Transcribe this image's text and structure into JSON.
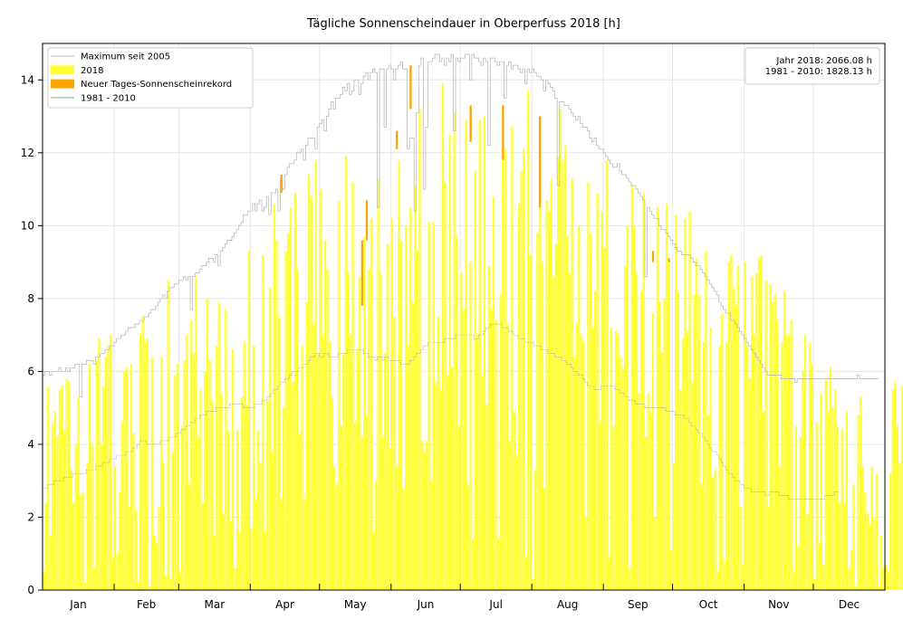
{
  "chart_data": {
    "type": "bar",
    "title": "Tägliche Sonnenscheindauer in Oberperfuss 2018 [h]",
    "xlabel": "",
    "ylabel": "",
    "ylim": [
      0,
      15
    ],
    "xlim_days": [
      0,
      365
    ],
    "grid": true,
    "legend_position": "top-left",
    "yticks": [
      0,
      2,
      4,
      6,
      8,
      10,
      12,
      14
    ],
    "month_labels": [
      "Jan",
      "Feb",
      "Mar",
      "Apr",
      "May",
      "Jun",
      "Jul",
      "Aug",
      "Sep",
      "Oct",
      "Nov",
      "Dec"
    ],
    "month_lengths": [
      31,
      28,
      31,
      30,
      31,
      30,
      31,
      31,
      30,
      31,
      30,
      31
    ],
    "legend": [
      {
        "label": "Maximum seit 2005",
        "kind": "line",
        "color": "#bbbbbb"
      },
      {
        "label": "2018",
        "kind": "patch",
        "color": "#ffff33"
      },
      {
        "label": "Neuer Tages-Sonnenscheinrekord",
        "kind": "patch",
        "color": "#ffa500"
      },
      {
        "label": "1981 - 2010",
        "kind": "line",
        "color": "#999999"
      }
    ],
    "annotation": {
      "line1": "Jahr 2018: 2066.08 h",
      "line2": "1981 - 2010: 1828.13 h"
    },
    "colors": {
      "bars_2018": "#ffff33",
      "record": "#ffa500",
      "maximum_line": "#bbbbbb",
      "normal_line": "#999999",
      "grid": "#e6e6e6"
    },
    "series": [
      {
        "name": "Maximum seit 2005",
        "type": "step",
        "values": [
          5.9,
          6.0,
          6.0,
          5.9,
          6.0,
          6.0,
          6.0,
          6.1,
          6.0,
          6.0,
          6.1,
          6.0,
          6.1,
          6.1,
          6.2,
          6.2,
          5.3,
          6.2,
          6.2,
          6.3,
          6.3,
          6.3,
          6.2,
          6.4,
          6.4,
          6.5,
          6.5,
          6.6,
          6.6,
          6.7,
          6.7,
          6.8,
          6.9,
          6.9,
          7.0,
          7.0,
          7.1,
          7.2,
          7.2,
          7.2,
          7.3,
          7.3,
          7.4,
          7.4,
          7.5,
          7.5,
          7.6,
          7.7,
          7.7,
          7.8,
          7.9,
          8.0,
          8.1,
          8.0,
          8.2,
          8.3,
          8.3,
          8.4,
          8.4,
          8.5,
          8.5,
          8.6,
          8.5,
          8.6,
          7.7,
          8.6,
          8.7,
          8.7,
          8.8,
          8.9,
          8.9,
          9.0,
          9.1,
          9.1,
          9.0,
          9.2,
          8.9,
          9.3,
          9.4,
          9.5,
          9.6,
          9.6,
          9.7,
          9.8,
          9.9,
          10.0,
          10.1,
          10.3,
          10.3,
          10.4,
          10.4,
          10.6,
          10.4,
          10.6,
          10.7,
          10.4,
          10.5,
          10.8,
          10.3,
          10.9,
          10.9,
          11.0,
          10.4,
          11.3,
          11.0,
          11.4,
          11.6,
          11.7,
          11.7,
          11.8,
          12.0,
          12.0,
          12.1,
          11.8,
          12.2,
          12.4,
          12.4,
          12.4,
          12.1,
          12.7,
          12.8,
          12.9,
          12.6,
          13.0,
          13.2,
          13.4,
          13.2,
          13.5,
          13.5,
          13.6,
          13.8,
          13.7,
          13.9,
          13.6,
          13.7,
          14.0,
          14.0,
          13.6,
          13.9,
          14.1,
          14.2,
          14.0,
          14.2,
          14.3,
          14.2,
          10.5,
          14.3,
          14.3,
          12.7,
          14.3,
          14.4,
          14.3,
          14.0,
          14.3,
          14.4,
          14.5,
          14.3,
          14.3,
          12.1,
          12.4,
          12.4,
          10.4,
          13.1,
          14.4,
          14.6,
          11.0,
          12.7,
          14.5,
          14.5,
          14.6,
          14.7,
          14.7,
          14.5,
          14.6,
          14.4,
          14.6,
          14.5,
          14.7,
          12.6,
          14.6,
          14.5,
          14.6,
          14.6,
          14.7,
          14.7,
          14.0,
          14.7,
          14.6,
          14.6,
          14.5,
          14.4,
          14.6,
          14.5,
          12.2,
          14.6,
          14.6,
          14.5,
          14.4,
          14.5,
          14.5,
          13.5,
          14.4,
          14.5,
          14.3,
          14.4,
          14.4,
          14.3,
          14.2,
          14.3,
          13.9,
          14.3,
          14.2,
          14.3,
          14.2,
          14.1,
          14.1,
          14.0,
          13.7,
          14.0,
          13.9,
          13.8,
          13.7,
          13.5,
          11.1,
          13.4,
          13.4,
          13.3,
          13.3,
          13.2,
          13.1,
          13.0,
          12.9,
          13.0,
          12.8,
          12.7,
          12.7,
          12.6,
          12.4,
          12.3,
          12.4,
          12.2,
          12.1,
          12.1,
          12.0,
          11.9,
          11.8,
          11.7,
          11.6,
          11.6,
          11.7,
          11.5,
          11.4,
          11.4,
          11.3,
          11.2,
          11.1,
          11.1,
          11.0,
          10.9,
          10.8,
          10.7,
          8.6,
          10.5,
          10.4,
          10.3,
          10.2,
          10.2,
          10.0,
          9.9,
          9.9,
          9.8,
          9.7,
          9.6,
          9.5,
          9.4,
          9.3,
          9.3,
          9.2,
          9.2,
          9.2,
          9.2,
          9.1,
          9.0,
          8.9,
          8.9,
          8.8,
          8.7,
          8.6,
          8.5,
          8.4,
          8.3,
          8.2,
          8.1,
          7.9,
          7.8,
          7.7,
          7.6,
          7.6,
          7.4,
          7.4,
          7.3,
          7.2,
          7.1,
          7.0,
          6.9,
          6.8,
          6.7,
          6.6,
          6.5,
          6.4,
          6.3,
          6.2,
          6.1,
          6.0,
          5.9,
          5.9,
          5.9,
          5.9,
          5.9,
          5.9,
          5.8,
          5.8,
          5.8,
          5.8,
          5.8,
          5.8,
          5.7,
          5.8,
          5.8,
          5.8,
          5.8,
          5.8,
          5.8,
          5.8,
          5.8,
          5.8,
          5.8,
          5.8,
          5.8,
          5.8,
          5.8,
          5.8,
          5.8,
          5.8,
          5.8,
          5.8,
          5.8,
          5.8,
          5.8,
          5.8,
          5.8,
          5.8,
          5.8,
          5.9,
          5.8,
          5.8,
          5.8,
          5.8,
          5.8,
          5.8,
          5.8,
          5.8
        ]
      },
      {
        "name": "2018",
        "type": "bar",
        "values": [
          0.5,
          2.4,
          5.6,
          1.5,
          4.6,
          4.9,
          4.2,
          5.5,
          5.6,
          4.4,
          5.8,
          5.7,
          3.3,
          2.4,
          4.0,
          5.3,
          2.6,
          2.7,
          0.2,
          3.5,
          6.2,
          4.0,
          0.6,
          6.3,
          6.9,
          4.0,
          5.6,
          6.4,
          6.7,
          7.0,
          0.9,
          3.4,
          1.0,
          2.7,
          4.6,
          6.0,
          6.1,
          2.3,
          6.2,
          4.3,
          2.2,
          0.2,
          7.0,
          7.5,
          6.8,
          6.9,
          0.1,
          6.4,
          1.5,
          1.3,
          2.3,
          6.4,
          3.5,
          0.4,
          8.5,
          0.3,
          3.8,
          5.9,
          6.2,
          0.5,
          4.5,
          6.3,
          7.0,
          2.9,
          7.4,
          6.5,
          8.6,
          4.2,
          5.5,
          2.4,
          6.0,
          8.0,
          6.3,
          5.2,
          1.5,
          6.7,
          7.9,
          5.4,
          2.1,
          7.7,
          4.4,
          1.9,
          6.6,
          0.6,
          4.4,
          1.6,
          5.3,
          6.8,
          5.1,
          9.3,
          1.7,
          6.7,
          2.5,
          4.4,
          3.5,
          9.2,
          1.6,
          5.2,
          8.3,
          3.8,
          10.6,
          9.6,
          7.5,
          2.5,
          5.0,
          9.3,
          9.8,
          10.5,
          5.7,
          10.9,
          8.8,
          4.3,
          6.7,
          2.5,
          7.9,
          11.4,
          10.8,
          7.3,
          11.8,
          6.5,
          11.0,
          7.0,
          9.6,
          8.8,
          6.8,
          5.3,
          3.4,
          2.9,
          10.7,
          4.5,
          6.5,
          11.9,
          8.7,
          7.0,
          11.2,
          4.6,
          6.6,
          8.6,
          4.2,
          9.7,
          4.8,
          8.8,
          10.2,
          1.6,
          3.0,
          11.3,
          8.7,
          4.2,
          6.5,
          9.5,
          3.9,
          10.2,
          7.5,
          3.4,
          11.8,
          9.6,
          2.8,
          10.0,
          6.7,
          10.5,
          7.9,
          11.1,
          9.3,
          13.2,
          4.1,
          3.8,
          4.1,
          10.1,
          3.0,
          10.1,
          5.7,
          7.5,
          5.5,
          13.9,
          11.2,
          5.9,
          12.5,
          6.1,
          13.1,
          9.7,
          4.5,
          8.7,
          7.7,
          12.9,
          2.9,
          9.0,
          1.4,
          11.5,
          7.0,
          12.9,
          5.9,
          13.0,
          5.1,
          8.9,
          7.7,
          10.8,
          7.4,
          1.4,
          8.1,
          11.8,
          12.1,
          7.3,
          4.1,
          12.7,
          4.9,
          3.7,
          10.6,
          11.5,
          12.1,
          0.9,
          13.7,
          9.2,
          0.3,
          3.3,
          9.8,
          11.9,
          9.0,
          2.8,
          10.7,
          10.4,
          11.3,
          8.6,
          9.5,
          11.9,
          13.2,
          11.8,
          12.2,
          9.7,
          8.7,
          11.3,
          6.4,
          7.3,
          10.0,
          7.0,
          6.8,
          2.0,
          11.2,
          9.8,
          7.2,
          8.2,
          10.9,
          4.6,
          10.4,
          9.4,
          11.8,
          0.9,
          7.2,
          4.5,
          7.1,
          7.0,
          6.4,
          6.1,
          8.9,
          10.0,
          0.6,
          11.1,
          10.0,
          8.7,
          5.4,
          8.2,
          10.9,
          4.2,
          5.4,
          4.9,
          7.6,
          2.0,
          10.5,
          7.9,
          6.5,
          8.0,
          10.6,
          9.1,
          1.1,
          3.5,
          10.3,
          8.2,
          5.5,
          6.9,
          10.2,
          7.1,
          10.4,
          5.7,
          8.1,
          9.1,
          8.1,
          2.9,
          6.8,
          9.3,
          4.8,
          7.2,
          3.1,
          3.3,
          0.5,
          6.7,
          7.6,
          0.8,
          6.8,
          9.0,
          9.2,
          8.3,
          7.8,
          8.9,
          2.3,
          0.7,
          9.0,
          6.7,
          5.8,
          8.6,
          7.0,
          8.7,
          9.1,
          9.2,
          4.9,
          8.5,
          2.3,
          8.4,
          7.9,
          8.1,
          7.4,
          3.4,
          6.8,
          8.2,
          7.0,
          7.0,
          7.4,
          0.5,
          4.5,
          1.2,
          4.2,
          6.0,
          7.0,
          2.1,
          6.8,
          6.2,
          0.3,
          4.6,
          1.3,
          5.4,
          0.7,
          5.8,
          4.9,
          6.1,
          5.0,
          5.5,
          4.5,
          2.4,
          4.4,
          2.4,
          4.9,
          0.6,
          1.1,
          2.9,
          0.1,
          4.8,
          5.3,
          3.4,
          2.7,
          2.1,
          1.8,
          3.4,
          2.0,
          3.2,
          0.1,
          1.5,
          0.6,
          0.7,
          0.5,
          3.2,
          5.5,
          5.7,
          4.5,
          3.5,
          5.6,
          0.4,
          0.3,
          3.3,
          4.6,
          1.2,
          0.6,
          5.3,
          0.3,
          5.6,
          5.8,
          0.1,
          4.7,
          2.6,
          5.7,
          5.8
        ]
      },
      {
        "name": "Neuer Tages-Sonnenscheinrekord",
        "type": "record_segments",
        "points": [
          {
            "day": 103.5,
            "low": 10.9,
            "high": 11.4
          },
          {
            "day": 138.5,
            "low": 7.8,
            "high": 9.6
          },
          {
            "day": 140.5,
            "low": 9.6,
            "high": 10.7
          },
          {
            "day": 153.5,
            "low": 12.1,
            "high": 12.6
          },
          {
            "day": 159.5,
            "low": 13.2,
            "high": 14.4
          },
          {
            "day": 185.5,
            "low": 12.3,
            "high": 13.3
          },
          {
            "day": 199.5,
            "low": 11.8,
            "high": 13.3
          },
          {
            "day": 215.5,
            "low": 10.5,
            "high": 13.0
          },
          {
            "day": 264.5,
            "low": 9.0,
            "high": 9.3
          },
          {
            "day": 271.5,
            "low": 9.0,
            "high": 9.1
          }
        ]
      },
      {
        "name": "1981 - 2010",
        "type": "step",
        "values": [
          2.8,
          2.8,
          2.9,
          2.9,
          2.9,
          3.0,
          3.0,
          3.0,
          3.0,
          3.1,
          3.1,
          3.1,
          3.1,
          3.2,
          3.2,
          3.2,
          3.2,
          3.2,
          3.2,
          3.3,
          3.3,
          3.3,
          3.3,
          3.4,
          3.4,
          3.4,
          3.5,
          3.5,
          3.5,
          3.6,
          3.6,
          3.6,
          3.7,
          3.7,
          3.7,
          3.7,
          3.8,
          3.8,
          3.8,
          3.9,
          3.9,
          4.0,
          4.1,
          4.1,
          4.1,
          4.0,
          4.0,
          4.0,
          4.0,
          4.0,
          4.0,
          4.1,
          4.1,
          4.1,
          4.1,
          4.2,
          4.2,
          4.2,
          4.3,
          4.3,
          4.4,
          4.4,
          4.5,
          4.5,
          4.6,
          4.6,
          4.7,
          4.7,
          4.8,
          4.8,
          4.8,
          4.9,
          4.9,
          4.9,
          4.9,
          5.0,
          5.0,
          5.0,
          5.0,
          5.0,
          5.0,
          5.1,
          5.1,
          5.1,
          5.1,
          5.1,
          5.1,
          5.0,
          5.0,
          5.0,
          5.0,
          5.0,
          5.1,
          5.1,
          5.1,
          5.2,
          5.2,
          5.3,
          5.3,
          5.4,
          5.5,
          5.5,
          5.6,
          5.7,
          5.7,
          5.8,
          5.8,
          5.9,
          6.0,
          6.0,
          6.0,
          6.1,
          6.1,
          6.2,
          6.2,
          6.3,
          6.4,
          6.4,
          6.5,
          6.5,
          6.4,
          6.4,
          6.5,
          6.5,
          6.4,
          6.4,
          6.4,
          6.4,
          6.5,
          6.5,
          6.5,
          6.5,
          6.6,
          6.6,
          6.6,
          6.6,
          6.6,
          6.6,
          6.6,
          6.5,
          6.5,
          6.4,
          6.4,
          6.4,
          6.3,
          6.4,
          6.4,
          6.3,
          6.4,
          6.4,
          6.3,
          6.3,
          6.3,
          6.3,
          6.3,
          6.2,
          6.2,
          6.2,
          6.2,
          6.3,
          6.3,
          6.4,
          6.5,
          6.5,
          6.6,
          6.7,
          6.7,
          6.8,
          6.8,
          6.8,
          6.8,
          6.8,
          6.8,
          6.8,
          6.9,
          6.9,
          6.9,
          6.9,
          6.9,
          7.0,
          7.0,
          7.0,
          7.0,
          7.0,
          7.0,
          7.0,
          7.0,
          6.9,
          6.9,
          7.0,
          7.0,
          7.1,
          7.2,
          7.2,
          7.3,
          7.3,
          7.3,
          7.3,
          7.3,
          7.2,
          7.2,
          7.2,
          7.1,
          7.1,
          7.0,
          7.0,
          6.9,
          6.9,
          6.9,
          6.8,
          6.8,
          6.8,
          6.8,
          6.7,
          6.7,
          6.7,
          6.6,
          6.6,
          6.6,
          6.5,
          6.5,
          6.5,
          6.4,
          6.4,
          6.4,
          6.3,
          6.3,
          6.2,
          6.2,
          6.1,
          6.0,
          6.0,
          5.9,
          5.9,
          5.8,
          5.7,
          5.6,
          5.6,
          5.6,
          5.5,
          5.5,
          5.5,
          5.6,
          5.6,
          5.6,
          5.6,
          5.6,
          5.6,
          5.5,
          5.5,
          5.4,
          5.4,
          5.3,
          5.3,
          5.2,
          5.2,
          5.2,
          5.1,
          5.1,
          5.1,
          5.1,
          5.0,
          5.0,
          5.0,
          5.0,
          5.0,
          5.0,
          5.0,
          5.0,
          5.0,
          4.9,
          4.9,
          4.9,
          4.9,
          4.8,
          4.8,
          4.8,
          4.8,
          4.7,
          4.7,
          4.6,
          4.5,
          4.5,
          4.4,
          4.3,
          4.3,
          4.2,
          4.1,
          4.0,
          3.9,
          3.8,
          3.8,
          3.7,
          3.6,
          3.5,
          3.4,
          3.3,
          3.2,
          3.2,
          3.1,
          3.0,
          3.0,
          2.9,
          2.9,
          2.8,
          2.8,
          2.8,
          2.7,
          2.7,
          2.7,
          2.7,
          2.7,
          2.7,
          2.6,
          2.6,
          2.7,
          2.7,
          2.7,
          2.7,
          2.6,
          2.6,
          2.6,
          2.6,
          2.5,
          2.5,
          2.5,
          2.5,
          2.5,
          2.5,
          2.5,
          2.5,
          2.5,
          2.5,
          2.5,
          2.5,
          2.5,
          2.5,
          2.5,
          2.5,
          2.6,
          2.6,
          2.6,
          2.6,
          2.7,
          2.7
        ]
      }
    ]
  }
}
